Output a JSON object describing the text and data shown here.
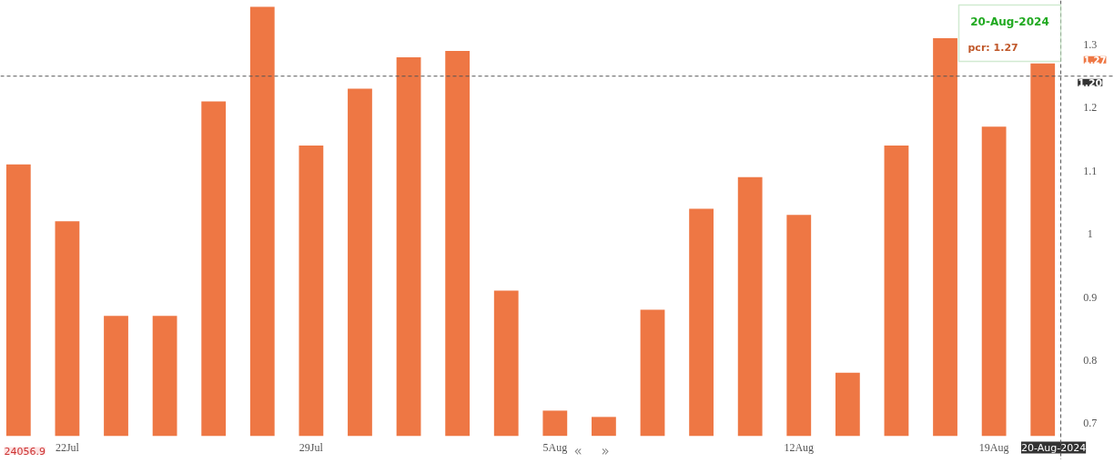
{
  "chart_data": {
    "type": "bar",
    "categories": [
      null,
      "22Jul",
      null,
      null,
      null,
      null,
      "29Jul",
      null,
      null,
      null,
      null,
      "5Aug",
      null,
      null,
      null,
      null,
      "12Aug",
      null,
      null,
      null,
      "19Aug",
      "20-Aug-2024"
    ],
    "values": [
      1.11,
      1.02,
      0.87,
      0.87,
      1.21,
      1.36,
      1.14,
      1.23,
      1.28,
      1.29,
      0.91,
      0.72,
      0.71,
      0.88,
      1.04,
      1.09,
      1.03,
      0.78,
      1.14,
      1.31,
      1.17,
      1.27
    ],
    "color": "#ee7744",
    "ylim": [
      0.68,
      1.37
    ],
    "yticks": [
      0.7,
      0.8,
      0.9,
      1,
      1.1,
      1.2,
      1.3
    ],
    "grid": false,
    "ref_lines": [
      {
        "axis": "y",
        "value": 1.25,
        "line_style": "dashed",
        "color": "#555555"
      },
      {
        "axis": "x",
        "value": "20-Aug-2024",
        "line_style": "dashed",
        "color": "#555555"
      }
    ],
    "annotations": [
      "20-Aug-2024",
      "pcr: 1.27",
      "1.27",
      "24056.9",
      "«",
      "»",
      "1.20"
    ]
  }
}
